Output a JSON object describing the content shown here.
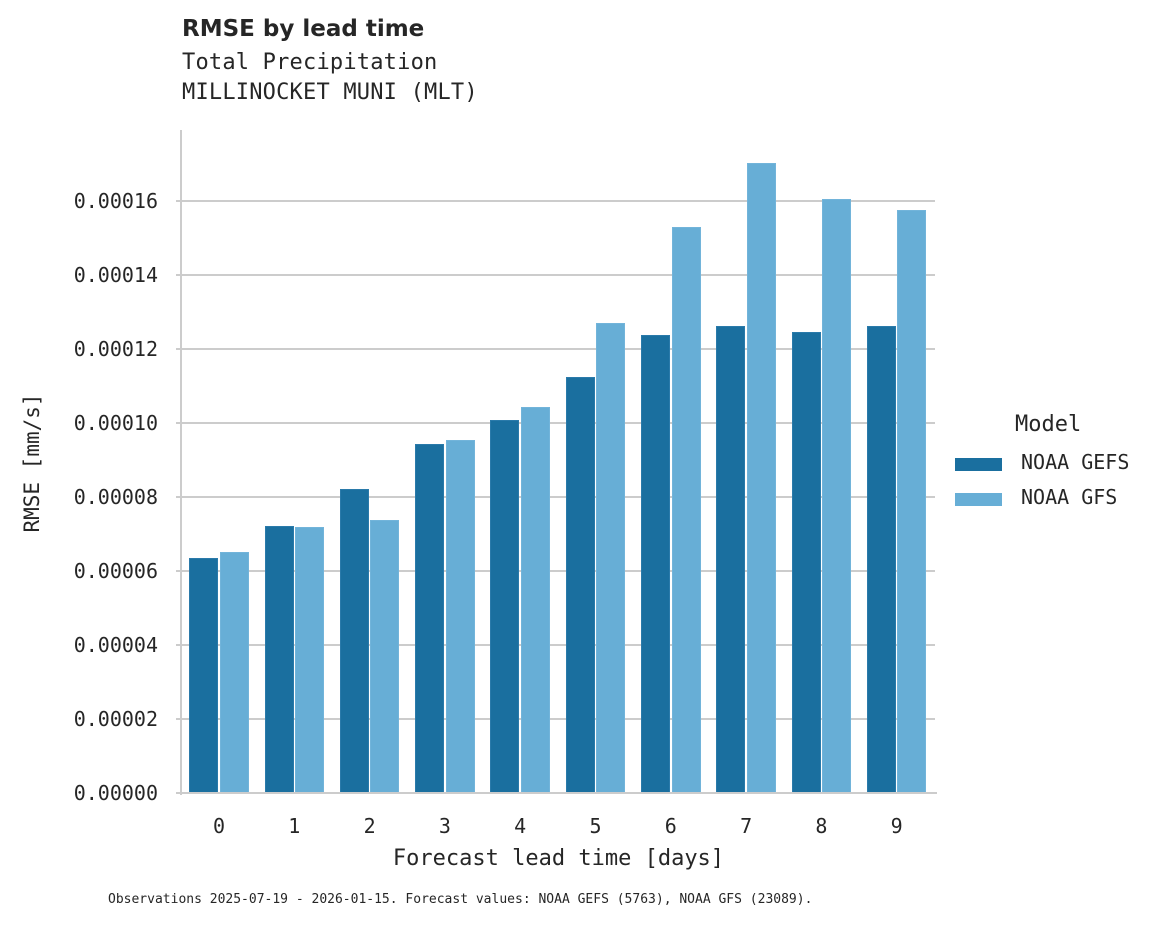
{
  "header": {
    "title": "RMSE by lead time",
    "subtitle_line1": "Total Precipitation",
    "subtitle_line2": "MILLINOCKET MUNI (MLT)"
  },
  "axes": {
    "xlabel": "Forecast lead time [days]",
    "ylabel": "RMSE [mm/s]",
    "yticks": [
      "0.00000",
      "0.00002",
      "0.00004",
      "0.00006",
      "0.00008",
      "0.00010",
      "0.00012",
      "0.00014",
      "0.00016"
    ],
    "xticks": [
      "0",
      "1",
      "2",
      "3",
      "4",
      "5",
      "6",
      "7",
      "8",
      "9"
    ]
  },
  "legend": {
    "title": "Model",
    "items": [
      {
        "label": "NOAA GEFS",
        "color": "#1a6f9f"
      },
      {
        "label": "NOAA GFS",
        "color": "#67aed6"
      }
    ]
  },
  "footer": {
    "note": "Observations 2025-07-19 - 2026-01-15. Forecast values: NOAA GEFS (5763), NOAA GFS (23089)."
  },
  "chart_data": {
    "type": "bar",
    "title": "RMSE by lead time",
    "subtitle": "Total Precipitation / MILLINOCKET MUNI (MLT)",
    "xlabel": "Forecast lead time [days]",
    "ylabel": "RMSE [mm/s]",
    "categories": [
      "0",
      "1",
      "2",
      "3",
      "4",
      "5",
      "6",
      "7",
      "8",
      "9"
    ],
    "series": [
      {
        "name": "NOAA GEFS",
        "color": "#1a6f9f",
        "values": [
          6.35e-05,
          7.22e-05,
          8.22e-05,
          9.43e-05,
          0.0001008,
          0.0001124,
          0.0001238,
          0.0001262,
          0.0001246,
          0.0001262
        ]
      },
      {
        "name": "NOAA GFS",
        "color": "#67aed6",
        "values": [
          6.51e-05,
          7.19e-05,
          7.38e-05,
          9.54e-05,
          0.0001043,
          0.000127,
          0.000153,
          0.0001703,
          0.0001605,
          0.0001576
        ]
      }
    ],
    "ylim": [
      0,
      0.000179
    ],
    "yticks": [
      0,
      2e-05,
      4e-05,
      6e-05,
      8e-05,
      0.0001,
      0.00012,
      0.00014,
      0.00016
    ],
    "grid": "horizontal",
    "legend_position": "right",
    "footnote": "Observations 2025-07-19 - 2026-01-15. Forecast values: NOAA GEFS (5763), NOAA GFS (23089)."
  }
}
